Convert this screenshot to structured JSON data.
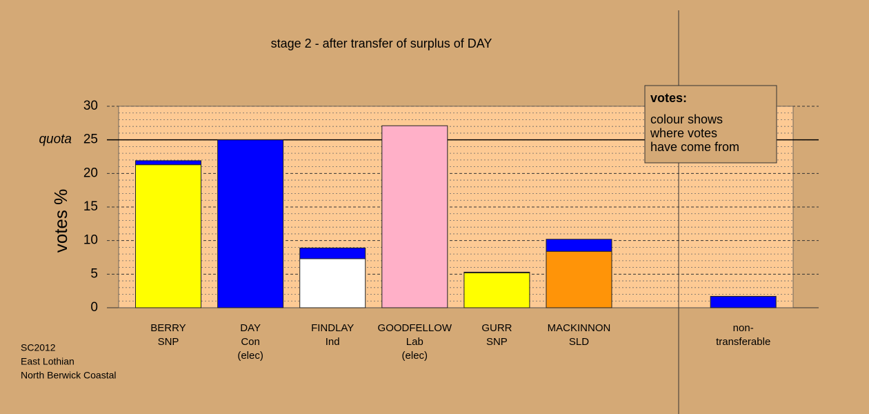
{
  "chart_data": {
    "type": "stacked-bar",
    "title": "stage 2 - after transfer of surplus of DAY",
    "y_label": "votes %",
    "quota_label": "quota",
    "quota": 25,
    "categories": [
      [
        "BERRY",
        "SNP"
      ],
      [
        "DAY",
        "Con",
        "(elec)"
      ],
      [
        "FINDLAY",
        "Ind"
      ],
      [
        "GOODFELLOW",
        "Lab",
        "(elec)"
      ],
      [
        "GURR",
        "SNP"
      ],
      [
        "MACKINNON",
        "SLD"
      ],
      null,
      [
        "non-",
        "transferable"
      ]
    ],
    "series": [
      {
        "colors": [
          "#ffff00",
          "#0000ff",
          "#ffffff",
          "#ffb0c8",
          "#ffff00",
          "#ff9408",
          null,
          "#0000ff"
        ],
        "values": [
          21.3,
          25.0,
          7.3,
          27.1,
          5.2,
          8.4,
          null,
          0
        ]
      },
      {
        "color": "#0000ff",
        "values": [
          0.6,
          0,
          1.6,
          0,
          0.1,
          1.8,
          null,
          1.7
        ]
      }
    ],
    "ylim": [
      0,
      30
    ],
    "yticks": [
      0,
      5,
      10,
      15,
      20,
      25,
      30
    ],
    "minor_yticks": [
      1,
      2,
      3,
      4,
      6,
      7,
      8,
      9,
      11,
      12,
      13,
      14,
      16,
      17,
      18,
      19,
      21,
      22,
      23,
      24,
      26,
      27,
      28,
      29
    ],
    "grid": true,
    "legend_box": {
      "title": "votes:",
      "lines": [
        "colour shows",
        "where votes",
        "have come from"
      ]
    },
    "footnote": [
      "SC2012",
      "East Lothian",
      "North Berwick Coastal"
    ]
  }
}
